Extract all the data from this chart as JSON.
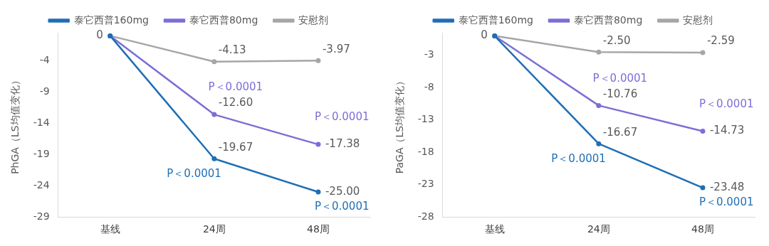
{
  "chart_data": [
    {
      "type": "line",
      "ylabel": "PhGA（LS均值变化）",
      "categories": [
        "基线",
        "24周",
        "48周"
      ],
      "ylim": [
        -29,
        0.5
      ],
      "yticks": [
        -4,
        -9,
        -14,
        -19,
        -24,
        -29
      ],
      "grid": false,
      "legend": "top",
      "marker": "circle",
      "line_style": "solid",
      "series": [
        {
          "name": "泰它西普160mg",
          "color": "#1f6fb5",
          "values": [
            0,
            -19.67,
            -25.0
          ],
          "value_labels": [
            null,
            "-19.67",
            "-25.00"
          ]
        },
        {
          "name": "泰它西普80mg",
          "color": "#7b6fd6",
          "values": [
            0,
            -12.6,
            -17.38
          ],
          "value_labels": [
            null,
            "-12.60",
            "-17.38"
          ]
        },
        {
          "name": "安慰剂",
          "color": "#a6a6a6",
          "values": [
            0,
            -4.13,
            -3.97
          ],
          "value_labels": [
            "0",
            "-4.13",
            "-3.97"
          ]
        }
      ],
      "annotations": [
        {
          "text": "P＜0.0001",
          "x": "24周",
          "y": -12.6
        },
        {
          "text": "P＜0.0001",
          "x": "48周",
          "y": -17.38
        },
        {
          "text": "P＜0.0001",
          "x": "24周",
          "y": -19.67
        },
        {
          "text": "P＜0.0001",
          "x": "48周",
          "y": -25.0
        }
      ]
    },
    {
      "type": "line",
      "ylabel": "PaGA（LS均值变化）",
      "categories": [
        "基线",
        "24周",
        "48周"
      ],
      "ylim": [
        -28,
        0.5
      ],
      "yticks": [
        -3,
        -8,
        -13,
        -18,
        -23,
        -28
      ],
      "grid": false,
      "legend": "top",
      "marker": "circle",
      "line_style": "solid",
      "series": [
        {
          "name": "泰它西普160mg",
          "color": "#1f6fb5",
          "values": [
            0,
            -16.67,
            -23.48
          ],
          "value_labels": [
            null,
            "-16.67",
            "-23.48"
          ]
        },
        {
          "name": "泰它西普80mg",
          "color": "#7b6fd6",
          "values": [
            0,
            -10.76,
            -14.73
          ],
          "value_labels": [
            null,
            "-10.76",
            "-14.73"
          ]
        },
        {
          "name": "安慰剂",
          "color": "#a6a6a6",
          "values": [
            0,
            -2.5,
            -2.59
          ],
          "value_labels": [
            "0",
            "-2.50",
            "-2.59"
          ]
        }
      ],
      "annotations": [
        {
          "text": "P＜0.0001",
          "x": "24周",
          "y": -10.76
        },
        {
          "text": "P＜0.0001",
          "x": "48周",
          "y": -14.73
        },
        {
          "text": "P＜0.0001",
          "x": "24周",
          "y": -16.67
        },
        {
          "text": "P＜0.0001",
          "x": "48周",
          "y": -23.48
        }
      ]
    }
  ]
}
